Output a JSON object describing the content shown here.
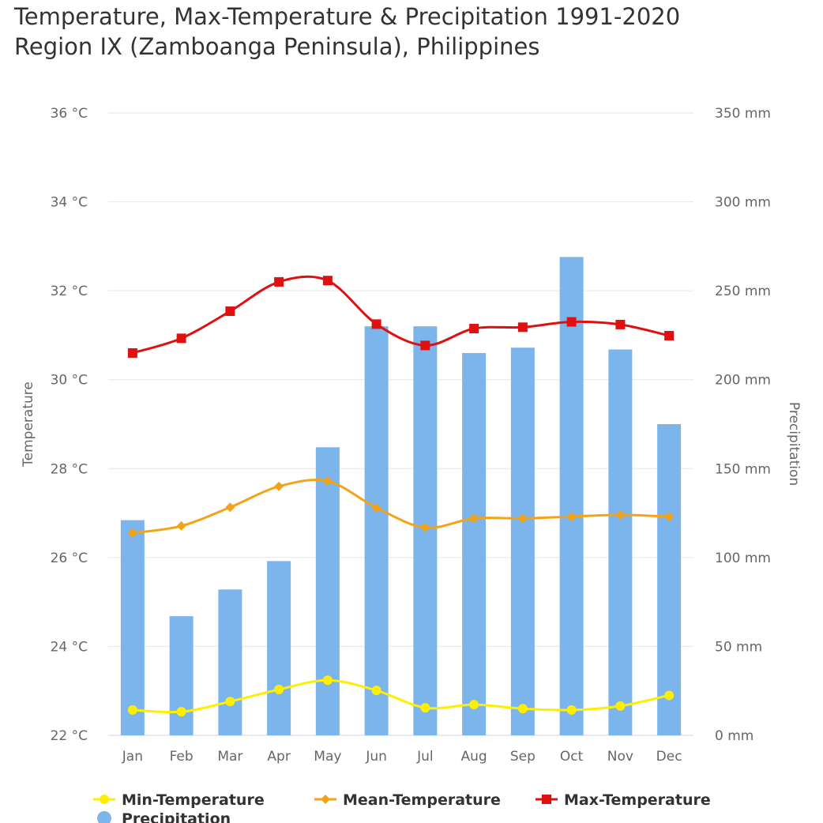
{
  "title_lines": [
    "Temperature, Max-Temperature & Precipitation 1991-2020",
    "Region IX (Zamboanga Peninsula), Philippines"
  ],
  "chart_data": {
    "type": "bar+line",
    "categories": [
      "Jan",
      "Feb",
      "Mar",
      "Apr",
      "May",
      "Jun",
      "Jul",
      "Aug",
      "Sep",
      "Oct",
      "Nov",
      "Dec"
    ],
    "y_left": {
      "label": "Temperature",
      "range": [
        22,
        36
      ],
      "ticks": [
        "22 °C",
        "24 °C",
        "26 °C",
        "28 °C",
        "30 °C",
        "32 °C",
        "34 °C",
        "36 °C"
      ]
    },
    "y_right": {
      "label": "Precipitation",
      "range": [
        0,
        350
      ],
      "ticks": [
        "0 mm",
        "50 mm",
        "100 mm",
        "150 mm",
        "200 mm",
        "250 mm",
        "300 mm",
        "350 mm"
      ]
    },
    "grid": true,
    "legend_position": "bottom",
    "series": [
      {
        "name": "Min-Temperature",
        "type": "line",
        "axis": "left",
        "color": "#ffee00",
        "marker": "circle",
        "values": [
          22.57,
          22.53,
          22.76,
          23.03,
          23.24,
          23.01,
          22.62,
          22.69,
          22.6,
          22.57,
          22.66,
          22.9
        ]
      },
      {
        "name": "Mean-Temperature",
        "type": "line",
        "axis": "left",
        "color": "#f5a316",
        "marker": "diamond",
        "values": [
          26.55,
          26.71,
          27.13,
          27.6,
          27.72,
          27.12,
          26.67,
          26.88,
          26.88,
          26.92,
          26.96,
          26.92
        ]
      },
      {
        "name": "Max-Temperature",
        "type": "line",
        "axis": "left",
        "color": "#e01010",
        "marker": "square",
        "values": [
          30.6,
          30.93,
          31.54,
          32.2,
          32.23,
          31.25,
          30.77,
          31.15,
          31.18,
          31.3,
          31.24,
          30.99
        ]
      },
      {
        "name": "Precipitation",
        "type": "bar",
        "axis": "right",
        "color": "#7cb5ec",
        "marker": "circle",
        "values": [
          121,
          67,
          82,
          98,
          162,
          230,
          230,
          215,
          218,
          269,
          217,
          175
        ]
      }
    ]
  }
}
